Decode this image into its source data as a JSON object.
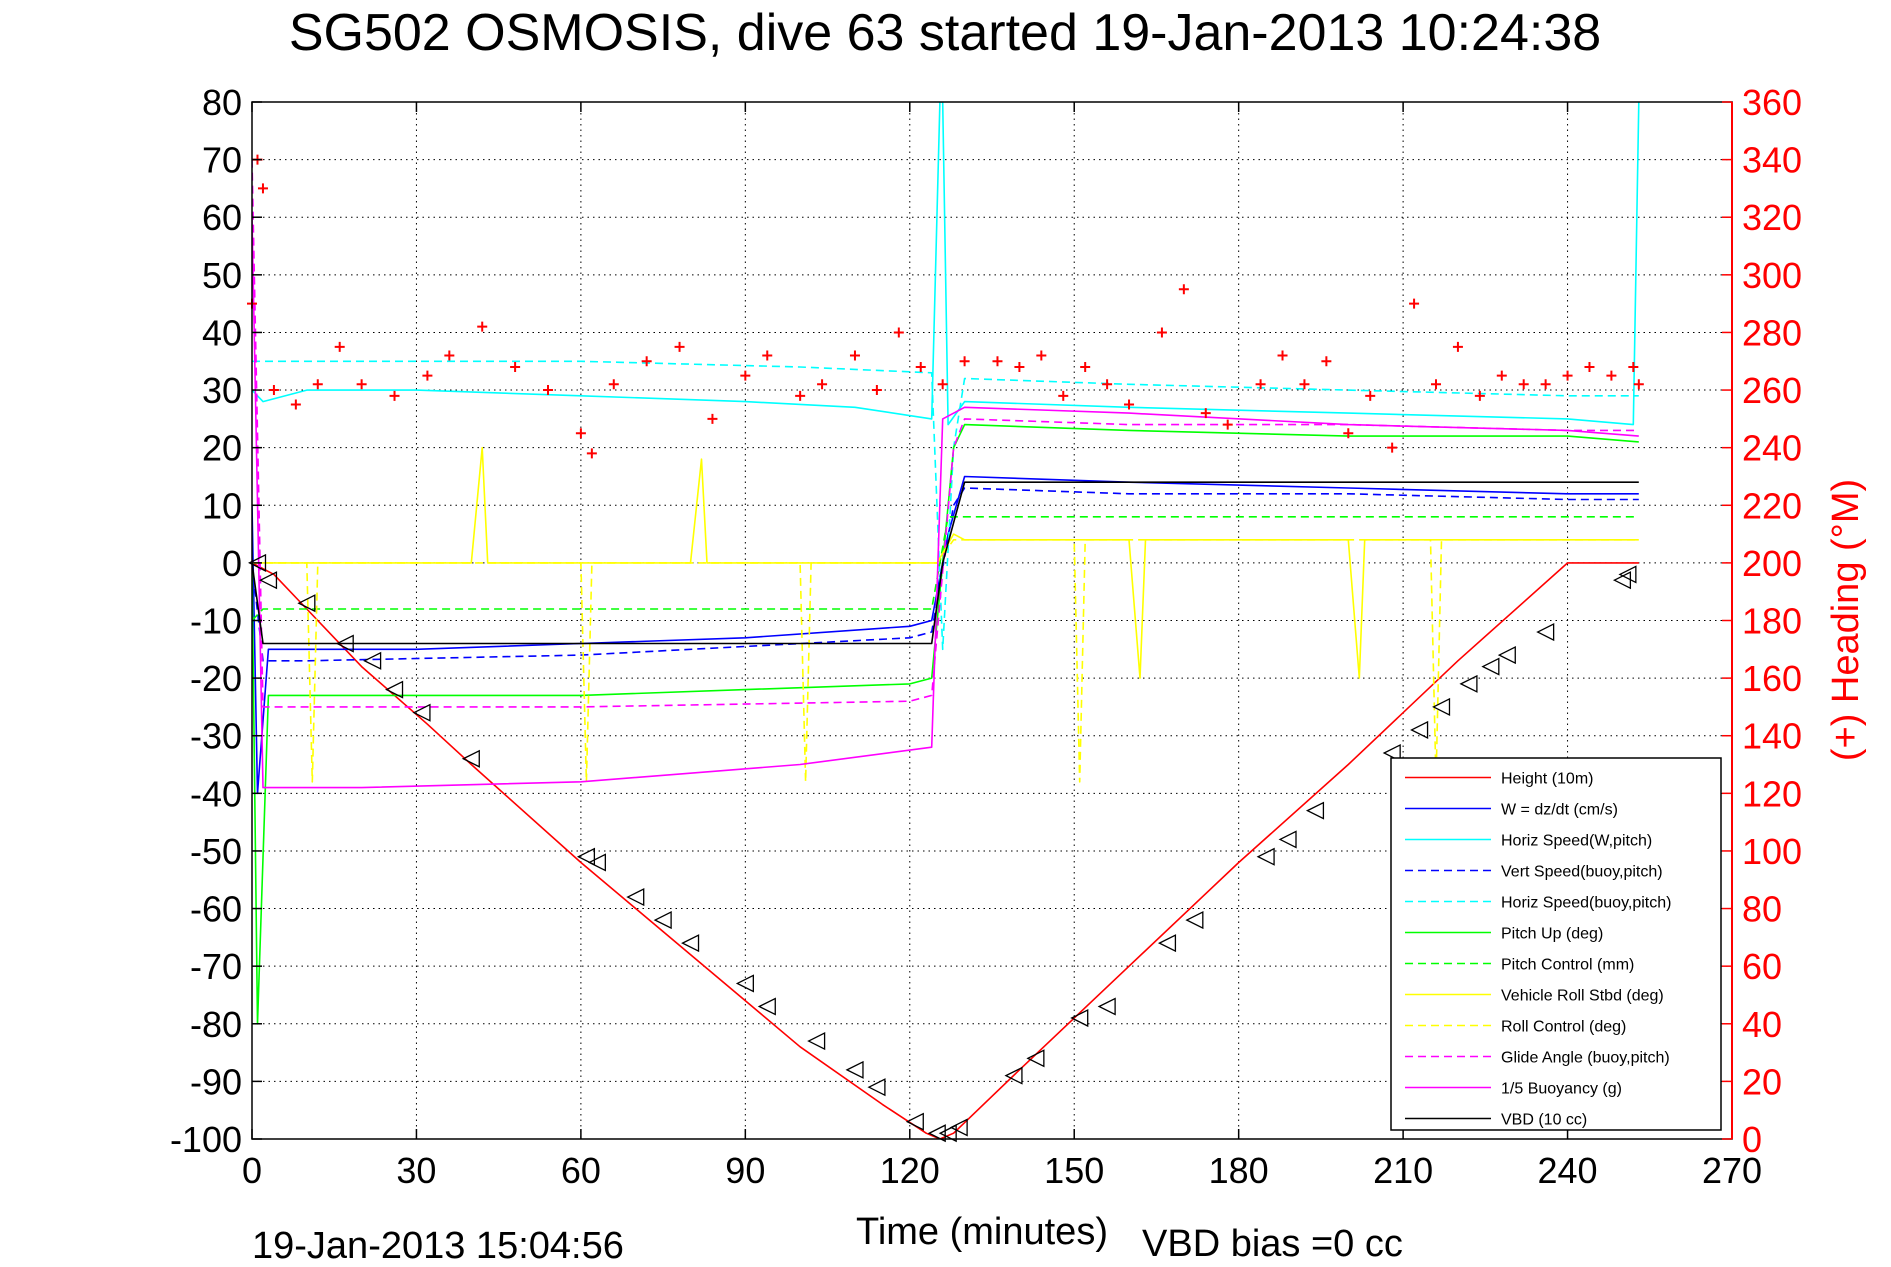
{
  "chart_data": {
    "type": "line",
    "title": "SG502 OSMOSIS, dive 63 started 19-Jan-2013 10:24:38",
    "xlabel": "Time (minutes)",
    "ylabel": "",
    "y2label": "(+) Heading (°M)",
    "footer_left": "19-Jan-2013 15:04:56",
    "footer_right": "VBD bias =0 cc",
    "xlim": [
      0,
      270
    ],
    "ylim": [
      -100,
      80
    ],
    "y2lim": [
      0,
      360
    ],
    "xticks": [
      "0",
      "30",
      "60",
      "90",
      "120",
      "150",
      "180",
      "210",
      "240",
      "270"
    ],
    "yticks": [
      "80",
      "70",
      "60",
      "50",
      "40",
      "30",
      "20",
      "10",
      "0",
      "-10",
      "-20",
      "-30",
      "-40",
      "-50",
      "-60",
      "-70",
      "-80",
      "-90",
      "-100"
    ],
    "y2ticks": [
      "360",
      "340",
      "320",
      "300",
      "280",
      "260",
      "240",
      "220",
      "200",
      "180",
      "160",
      "140",
      "120",
      "100",
      "80",
      "60",
      "40",
      "20",
      "0"
    ],
    "grid": true,
    "legend_position": "lower-right",
    "colors": {
      "axis": "#000000",
      "right_axis": "#ff0000",
      "grid": "#000000"
    },
    "series": [
      {
        "name": "Height (10m)",
        "color": "#ff0000",
        "dash": "solid",
        "x": [
          0,
          4,
          10,
          20,
          32,
          40,
          60,
          80,
          100,
          115,
          123,
          125.5,
          128,
          140,
          160,
          180,
          200,
          220,
          240,
          253
        ],
        "y": [
          0,
          -2,
          -8,
          -18,
          -28,
          -35,
          -52,
          -68,
          -84,
          -94,
          -99,
          -100,
          -99,
          -88,
          -70,
          -52,
          -35,
          -17,
          0,
          0
        ]
      },
      {
        "name": "W = dz/dt (cm/s)",
        "color": "#0000ff",
        "dash": "solid",
        "x": [
          0,
          1,
          3,
          10,
          30,
          60,
          90,
          120,
          124,
          127,
          130,
          160,
          200,
          240,
          250,
          253
        ],
        "y": [
          10,
          -40,
          -15,
          -15,
          -15,
          -14,
          -13,
          -11,
          -10,
          5,
          15,
          14,
          13,
          12,
          12,
          12
        ]
      },
      {
        "name": "Horiz Speed(W,pitch)",
        "color": "#00ffff",
        "dash": "solid",
        "x": [
          0,
          2,
          10,
          30,
          60,
          90,
          110,
          124,
          125.5,
          126,
          127,
          130,
          160,
          200,
          240,
          252,
          253
        ],
        "y": [
          30,
          28,
          30,
          30,
          29,
          28,
          27,
          25,
          80,
          80,
          24,
          28,
          27,
          26,
          25,
          24,
          80
        ]
      },
      {
        "name": "Vert Speed(buoy,pitch)",
        "color": "#0000ff",
        "dash": "dashed",
        "x": [
          0,
          2,
          10,
          60,
          120,
          124,
          128,
          130,
          160,
          200,
          240,
          253
        ],
        "y": [
          0,
          -17,
          -17,
          -16,
          -13,
          -12,
          10,
          13,
          12,
          12,
          11,
          11
        ]
      },
      {
        "name": "Horiz Speed(buoy,pitch)",
        "color": "#00ffff",
        "dash": "dashed",
        "x": [
          0,
          2,
          10,
          60,
          100,
          124,
          126,
          128,
          130,
          160,
          200,
          240,
          253
        ],
        "y": [
          35,
          35,
          35,
          35,
          34,
          33,
          -15,
          20,
          32,
          31,
          30,
          29,
          29
        ]
      },
      {
        "name": "Pitch Up (deg)",
        "color": "#00ff00",
        "dash": "solid",
        "x": [
          0,
          1,
          3,
          10,
          60,
          90,
          120,
          124,
          128,
          130,
          160,
          200,
          240,
          253
        ],
        "y": [
          0,
          -80,
          -23,
          -23,
          -23,
          -22,
          -21,
          -20,
          20,
          24,
          23,
          22,
          22,
          21
        ]
      },
      {
        "name": "Pitch Control (mm)",
        "color": "#00ff00",
        "dash": "dashed",
        "x": [
          0,
          2,
          10,
          124,
          127,
          130,
          170,
          253
        ],
        "y": [
          -10,
          -8,
          -8,
          -8,
          8,
          8,
          8,
          8
        ]
      },
      {
        "name": "Vehicle Roll Stbd (deg)",
        "color": "#ffff00",
        "dash": "solid",
        "x": [
          0,
          4,
          5,
          40,
          42,
          43,
          80,
          82,
          83,
          125,
          128,
          130,
          160,
          162,
          163,
          200,
          202,
          203,
          253
        ],
        "y": [
          0,
          0,
          0,
          0,
          20,
          0,
          0,
          18,
          0,
          0,
          5,
          4,
          4,
          -20,
          4,
          4,
          -20,
          4,
          4
        ]
      },
      {
        "name": "Roll Control (deg)",
        "color": "#ffff00",
        "dash": "dashed",
        "x": [
          0,
          10,
          11,
          12,
          60,
          61,
          62,
          100,
          101,
          102,
          125,
          128,
          150,
          151,
          152,
          215,
          216,
          217,
          253
        ],
        "y": [
          0,
          0,
          -38,
          0,
          0,
          -38,
          0,
          0,
          -38,
          0,
          0,
          4,
          4,
          -38,
          4,
          4,
          -38,
          4,
          4
        ]
      },
      {
        "name": "Glide Angle (buoy,pitch)",
        "color": "#ff00ff",
        "dash": "dashed",
        "x": [
          0,
          2,
          10,
          60,
          120,
          124,
          128,
          130,
          160,
          200,
          240,
          253
        ],
        "y": [
          70,
          -25,
          -25,
          -25,
          -24,
          -23,
          20,
          25,
          24,
          24,
          23,
          23
        ]
      },
      {
        "name": "1/5 Buoyancy (g)",
        "color": "#ff00ff",
        "dash": "solid",
        "x": [
          0,
          2,
          20,
          60,
          100,
          124,
          126,
          130,
          160,
          200,
          240,
          253
        ],
        "y": [
          60,
          -39,
          -39,
          -38,
          -35,
          -32,
          25,
          27,
          26,
          24,
          23,
          22
        ]
      },
      {
        "name": "VBD (10 cc)",
        "color": "#000000",
        "dash": "solid",
        "x": [
          0,
          2,
          10,
          60,
          124,
          126,
          130,
          160,
          200,
          240,
          253
        ],
        "y": [
          0,
          -14,
          -14,
          -14,
          -14,
          0,
          14,
          14,
          14,
          14,
          14
        ]
      }
    ],
    "heading_series": {
      "name": "(+) Heading",
      "color": "#ff0000",
      "marker": "+",
      "x": [
        0,
        1,
        2,
        4,
        8,
        12,
        16,
        20,
        26,
        32,
        36,
        42,
        48,
        54,
        60,
        62,
        66,
        72,
        78,
        84,
        90,
        94,
        100,
        104,
        110,
        114,
        118,
        122,
        126,
        130,
        136,
        140,
        144,
        148,
        152,
        156,
        160,
        166,
        170,
        174,
        178,
        184,
        188,
        192,
        196,
        200,
        204,
        208,
        212,
        216,
        220,
        224,
        228,
        232,
        236,
        240,
        244,
        248,
        252,
        253
      ],
      "y": [
        290,
        340,
        330,
        260,
        255,
        262,
        275,
        262,
        258,
        265,
        272,
        282,
        268,
        260,
        245,
        238,
        262,
        270,
        275,
        250,
        265,
        272,
        258,
        262,
        272,
        260,
        280,
        268,
        262,
        270,
        270,
        268,
        272,
        258,
        268,
        262,
        255,
        280,
        295,
        252,
        248,
        262,
        272,
        262,
        270,
        245,
        258,
        240,
        290,
        262,
        275,
        258,
        265,
        262,
        262,
        265,
        268,
        265,
        268,
        262
      ]
    },
    "markers": {
      "name": "depth markers",
      "color": "#000000",
      "x": [
        1,
        3,
        10,
        17,
        22,
        26,
        31,
        40,
        61,
        63,
        70,
        75,
        80,
        90,
        94,
        103,
        110,
        114,
        121,
        125,
        127,
        129,
        139,
        143,
        151,
        156,
        167,
        172,
        185,
        189,
        194,
        208,
        213,
        217,
        222,
        226,
        229,
        236,
        250,
        251
      ],
      "y": [
        0,
        -3,
        -7,
        -14,
        -17,
        -22,
        -26,
        -34,
        -51,
        -52,
        -58,
        -62,
        -66,
        -73,
        -77,
        -83,
        -88,
        -91,
        -97,
        -99,
        -99,
        -98,
        -89,
        -86,
        -79,
        -77,
        -66,
        -62,
        -51,
        -48,
        -43,
        -33,
        -29,
        -25,
        -21,
        -18,
        -16,
        -12,
        -3,
        -2
      ]
    }
  }
}
